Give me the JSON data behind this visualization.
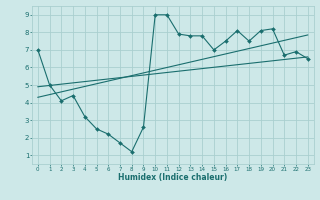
{
  "xlabel": "Humidex (Indice chaleur)",
  "xlim": [
    -0.5,
    23.5
  ],
  "ylim": [
    0.5,
    9.5
  ],
  "xticks": [
    0,
    1,
    2,
    3,
    4,
    5,
    6,
    7,
    8,
    9,
    10,
    11,
    12,
    13,
    14,
    15,
    16,
    17,
    18,
    19,
    20,
    21,
    22,
    23
  ],
  "yticks": [
    1,
    2,
    3,
    4,
    5,
    6,
    7,
    8,
    9
  ],
  "bg_color": "#cde8e8",
  "grid_color": "#aacfcf",
  "line_color": "#1a6e6e",
  "data_line": {
    "x": [
      0,
      1,
      2,
      3,
      4,
      5,
      6,
      7,
      8,
      9,
      10,
      11,
      12,
      13,
      14,
      15,
      16,
      17,
      18,
      19,
      20,
      21,
      22,
      23
    ],
    "y": [
      7.0,
      5.0,
      4.1,
      4.4,
      3.2,
      2.5,
      2.2,
      1.7,
      1.2,
      2.6,
      9.0,
      9.0,
      7.9,
      7.8,
      7.8,
      7.0,
      7.5,
      8.1,
      7.5,
      8.1,
      8.2,
      6.7,
      6.9,
      6.5
    ]
  },
  "reg_line1": {
    "x": [
      0,
      23
    ],
    "y": [
      4.9,
      6.6
    ]
  },
  "reg_line2": {
    "x": [
      0,
      23
    ],
    "y": [
      4.3,
      7.85
    ]
  }
}
